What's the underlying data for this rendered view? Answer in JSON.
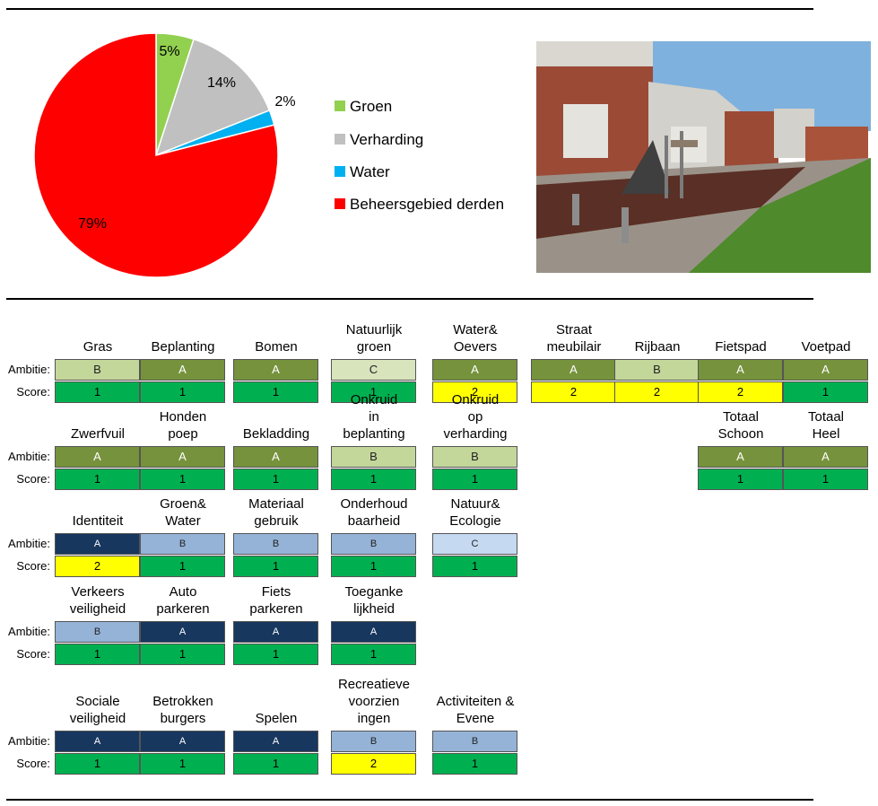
{
  "chart_data": {
    "type": "pie",
    "slices": [
      {
        "name": "Groen",
        "value": 5,
        "label": "5%",
        "color": "#92d050"
      },
      {
        "name": "Verharding",
        "value": 14,
        "label": "14%",
        "color": "#c0c0c0"
      },
      {
        "name": "Water",
        "value": 2,
        "label": "2%",
        "color": "#00b0f0"
      },
      {
        "name": "Beheersgebied derden",
        "value": 79,
        "label": "79%",
        "color": "#ff0000"
      }
    ],
    "legend_position": "right"
  },
  "photo": {
    "description_icon": "playground-photo"
  },
  "labels": {
    "ambitie": "Ambitie:",
    "score": "Score:"
  },
  "colors": {
    "A_green": "#76923c",
    "B_green": "#c4d79b",
    "C_green": "#d8e4bc",
    "A_blue": "#17375e",
    "B_blue": "#95b3d7",
    "C_blue": "#c5d9f1",
    "score1": "#00b050",
    "score2": "#ffff00"
  },
  "rows": [
    {
      "items": [
        {
          "title": "Gras",
          "ambitie": "B",
          "score": "1",
          "col": 0
        },
        {
          "title": "Beplanting",
          "ambitie": "A",
          "score": "1",
          "col": 1
        },
        {
          "title": "Bomen",
          "ambitie": "A",
          "score": "1",
          "col": 2
        },
        {
          "title": "Natuurlijk groen",
          "ambitie": "C",
          "score": "1",
          "col": 3
        },
        {
          "title": "Water& Oevers",
          "ambitie": "A",
          "score": "2",
          "col": 4
        },
        {
          "title": "Straat meubilair",
          "ambitie": "A",
          "score": "2",
          "col": 5
        },
        {
          "title": "Rijbaan",
          "ambitie": "B",
          "score": "2",
          "col": 6
        },
        {
          "title": "Fietspad",
          "ambitie": "A",
          "score": "2",
          "col": 7
        },
        {
          "title": "Voetpad",
          "ambitie": "A",
          "score": "1",
          "col": 8
        }
      ],
      "palette": "green"
    },
    {
      "items": [
        {
          "title": "Zwerfvuil",
          "ambitie": "A",
          "score": "1",
          "col": 0
        },
        {
          "title": "Honden poep",
          "ambitie": "A",
          "score": "1",
          "col": 1
        },
        {
          "title": "Bekladding",
          "ambitie": "A",
          "score": "1",
          "col": 2
        },
        {
          "title": "Onkruid in beplanting",
          "ambitie": "B",
          "score": "1",
          "col": 3
        },
        {
          "title": "Onkruid op verharding",
          "ambitie": "B",
          "score": "1",
          "col": 4
        },
        {
          "title": "Totaal Schoon",
          "ambitie": "A",
          "score": "1",
          "col": 7
        },
        {
          "title": "Totaal Heel",
          "ambitie": "A",
          "score": "1",
          "col": 8
        }
      ],
      "palette": "green"
    },
    {
      "items": [
        {
          "title": "Identiteit",
          "ambitie": "A",
          "score": "2",
          "col": 0
        },
        {
          "title": "Groen& Water",
          "ambitie": "B",
          "score": "1",
          "col": 1
        },
        {
          "title": "Materiaal gebruik",
          "ambitie": "B",
          "score": "1",
          "col": 2
        },
        {
          "title": "Onderhoud baarheid",
          "ambitie": "B",
          "score": "1",
          "col": 3
        },
        {
          "title": "Natuur& Ecologie",
          "ambitie": "C",
          "score": "1",
          "col": 4
        }
      ],
      "palette": "blue"
    },
    {
      "items": [
        {
          "title": "Verkeers veiligheid",
          "ambitie": "B",
          "score": "1",
          "col": 0
        },
        {
          "title": "Auto parkeren",
          "ambitie": "A",
          "score": "1",
          "col": 1
        },
        {
          "title": "Fiets parkeren",
          "ambitie": "A",
          "score": "1",
          "col": 2
        },
        {
          "title": "Toeganke lijkheid",
          "ambitie": "A",
          "score": "1",
          "col": 3
        }
      ],
      "palette": "blue"
    },
    {
      "items": [
        {
          "title": "Sociale veiligheid",
          "ambitie": "A",
          "score": "1",
          "col": 0
        },
        {
          "title": "Betrokken burgers",
          "ambitie": "A",
          "score": "1",
          "col": 1
        },
        {
          "title": "Spelen",
          "ambitie": "A",
          "score": "1",
          "col": 2
        },
        {
          "title": "Recreatieve voorzien ingen",
          "ambitie": "B",
          "score": "2",
          "col": 3
        },
        {
          "title": "Activiteiten & Evene menten",
          "ambitie": "B",
          "score": "1",
          "col": 4
        }
      ],
      "palette": "blue"
    }
  ]
}
